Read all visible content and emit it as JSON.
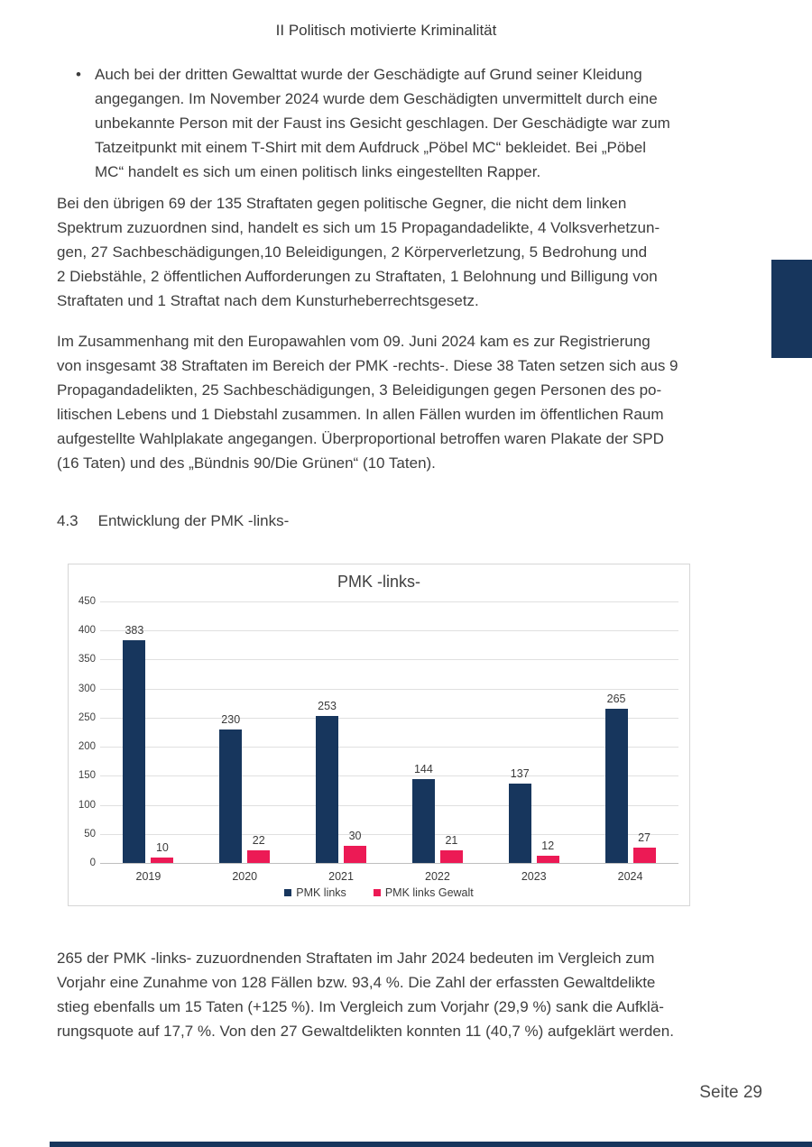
{
  "page": {
    "header": "II Politisch motivierte Kriminalität",
    "footer_label": "Seite 29"
  },
  "content": {
    "bullet_char": "•",
    "bullet_item": {
      "lines": [
        "Auch bei der dritten Gewalttat wurde der Geschädigte auf Grund seiner Kleidung",
        "angegangen. Im November 2024 wurde dem Geschädigten unvermittelt durch eine",
        "unbekannte Person mit der Faust ins Gesicht geschlagen. Der Geschädigte war zum",
        "Tatzeitpunkt mit einem T-Shirt mit dem Aufdruck „Pöbel MC“ bekleidet. Bei „Pöbel",
        "MC“ handelt es sich um einen politisch links eingestellten Rapper."
      ]
    },
    "paragraph_1": {
      "lines": [
        "Bei den übrigen 69 der 135 Straftaten gegen politische Gegner, die nicht dem linken",
        "Spektrum zuzuordnen sind, handelt es sich um 15 Propagandadelikte, 4 Volksverhetzun-",
        "gen, 27 Sachbeschädigungen,10 Beleidigungen, 2 Körperverletzung, 5 Bedrohung und",
        "2 Diebstähle, 2 öffentlichen Aufforderungen zu Straftaten, 1 Belohnung und Billigung von",
        "Straftaten und 1 Straftat nach dem Kunsturheberrechtsgesetz."
      ]
    },
    "paragraph_2": {
      "lines": [
        "Im Zusammenhang mit den Europawahlen vom 09. Juni 2024 kam es zur Registrierung",
        "von insgesamt 38 Straftaten im Bereich der PMK -rechts-. Diese 38 Taten setzen sich aus 9",
        "Propagandadelikten, 25 Sachbeschädigungen, 3 Beleidigungen gegen Personen des po-",
        "litischen Lebens und 1 Diebstahl zusammen. In allen Fällen wurden im öffentlichen Raum",
        "aufgestellte Wahlplakate angegangen. Überproportional betroffen waren Plakate der SPD",
        "(16 Taten) und des „Bündnis 90/Die Grünen“ (10 Taten)."
      ]
    },
    "section_heading": {
      "number": "4.3",
      "title": "Entwicklung der PMK -links-"
    },
    "paragraph_3": {
      "lines": [
        "265 der PMK -links- zuzuordnenden Straftaten im Jahr 2024 bedeuten im Vergleich zum",
        "Vorjahr eine Zunahme von 128 Fällen bzw. 93,4 %. Die Zahl der erfassten Gewaltdelikte",
        "stieg ebenfalls um 15 Taten (+125 %). Im Vergleich zum Vorjahr (29,9 %) sank die Aufklä-",
        "rungsquote auf 17,7 %. Von den 27 Gewaltdelikten konnten 11 (40,7 %) aufgeklärt werden."
      ]
    }
  },
  "chart_data": {
    "type": "bar",
    "title": "PMK -links-",
    "categories": [
      "2019",
      "2020",
      "2021",
      "2022",
      "2023",
      "2024"
    ],
    "series": [
      {
        "name": "PMK links",
        "color": "#17365d",
        "values": [
          383,
          230,
          253,
          144,
          137,
          265
        ]
      },
      {
        "name": "PMK links Gewalt",
        "color": "#ec1a55",
        "values": [
          10,
          22,
          30,
          21,
          12,
          27
        ]
      }
    ],
    "ylim": [
      0,
      450
    ],
    "ytick_step": 50,
    "grid": true,
    "legend_position": "bottom"
  },
  "decor": {
    "accent_navy": "#17365d"
  }
}
